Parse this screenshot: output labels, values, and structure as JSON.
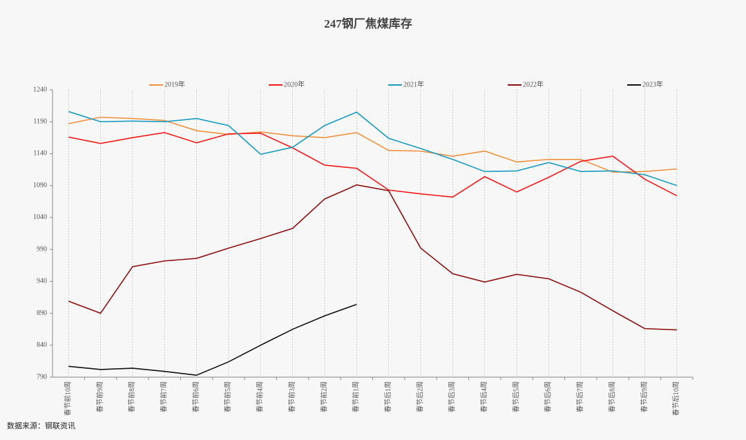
{
  "chart_data": {
    "type": "line",
    "title": "247钢厂焦煤库存",
    "source": "数据来源：钢联资讯",
    "categories": [
      "春节前10周",
      "春节前9周",
      "春节前8周",
      "春节前7周",
      "春节前6周",
      "春节前5周",
      "春节前4周",
      "春节前3周",
      "春节前2周",
      "春节前1周",
      "春节后1周",
      "春节后2周",
      "春节后3周",
      "春节后4周",
      "春节后5周",
      "春节后6周",
      "春节后7周",
      "春节后8周",
      "春节后9周",
      "春节后10周"
    ],
    "series": [
      {
        "name": "2019年",
        "color": "#f0913f",
        "values": [
          1187,
          1197,
          1195,
          1192,
          1176,
          1170,
          1174,
          1168,
          1165,
          1173,
          1145,
          1144,
          1136,
          1144,
          1127,
          1131,
          1131,
          1111,
          1112,
          1116
        ]
      },
      {
        "name": "2020年",
        "color": "#f21a1a",
        "values": [
          1166,
          1156,
          1165,
          1173,
          1157,
          1171,
          1172,
          1149,
          1122,
          1117,
          1083,
          1077,
          1072,
          1104,
          1080,
          1103,
          1128,
          1136,
          1100,
          1074
        ]
      },
      {
        "name": "2021年",
        "color": "#1a9bbf",
        "values": [
          1206,
          1190,
          1191,
          1190,
          1195,
          1184,
          1139,
          1150,
          1184,
          1205,
          1164,
          1148,
          1131,
          1112,
          1113,
          1126,
          1112,
          1113,
          1107,
          1090
        ]
      },
      {
        "name": "2022年",
        "color": "#8b1010",
        "values": [
          909,
          890,
          963,
          972,
          976,
          992,
          1007,
          1023,
          1069,
          1091,
          1082,
          992,
          952,
          939,
          951,
          944,
          923,
          894,
          866,
          864
        ]
      },
      {
        "name": "2023年",
        "color": "#111111",
        "values": [
          807,
          802,
          804,
          799,
          793,
          814,
          840,
          865,
          886,
          904,
          null,
          null,
          null,
          null,
          null,
          null,
          null,
          null,
          null,
          null
        ]
      }
    ],
    "ylim": [
      790,
      1240
    ],
    "yticks": [
      790,
      840,
      890,
      940,
      990,
      1040,
      1090,
      1140,
      1190,
      1240
    ],
    "grid": true,
    "legend": "top"
  }
}
